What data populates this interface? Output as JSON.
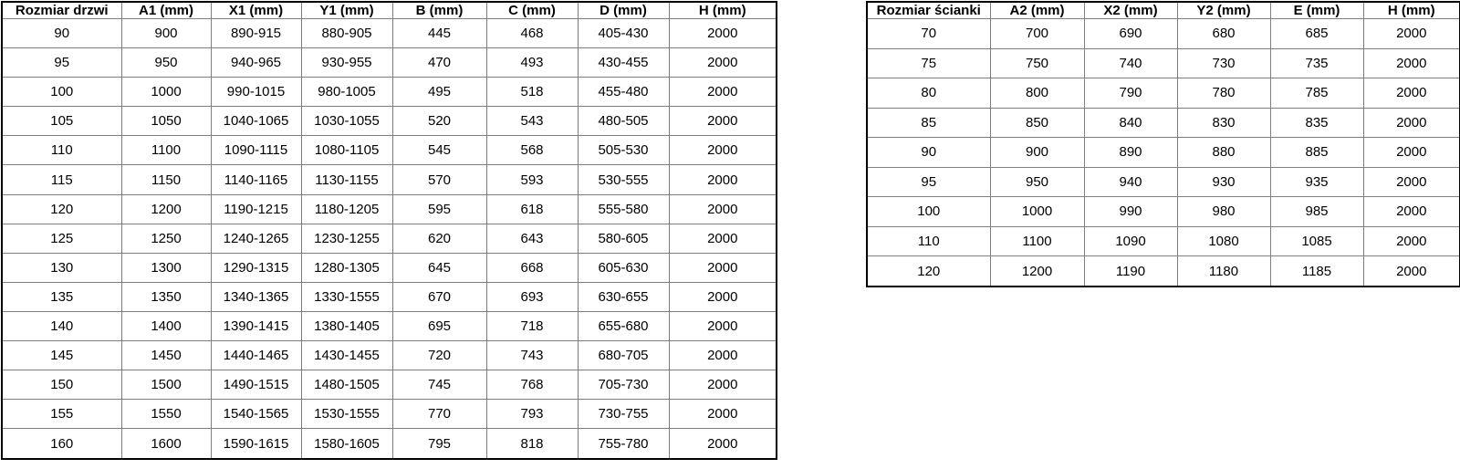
{
  "page": {
    "background": "#ffffff"
  },
  "colors": {
    "outer_border": "#000000",
    "grid_border": "#808080",
    "text": "#000000"
  },
  "tables": [
    {
      "name": "door-size-table",
      "headers": [
        "Rozmiar drzwi",
        "A1 (mm)",
        "X1 (mm)",
        "Y1 (mm)",
        "B (mm)",
        "C (mm)",
        "D (mm)",
        "H (mm)"
      ],
      "rows": [
        [
          "90",
          "900",
          "890-915",
          "880-905",
          "445",
          "468",
          "405-430",
          "2000"
        ],
        [
          "95",
          "950",
          "940-965",
          "930-955",
          "470",
          "493",
          "430-455",
          "2000"
        ],
        [
          "100",
          "1000",
          "990-1015",
          "980-1005",
          "495",
          "518",
          "455-480",
          "2000"
        ],
        [
          "105",
          "1050",
          "1040-1065",
          "1030-1055",
          "520",
          "543",
          "480-505",
          "2000"
        ],
        [
          "110",
          "1100",
          "1090-1115",
          "1080-1105",
          "545",
          "568",
          "505-530",
          "2000"
        ],
        [
          "115",
          "1150",
          "1140-1165",
          "1130-1155",
          "570",
          "593",
          "530-555",
          "2000"
        ],
        [
          "120",
          "1200",
          "1190-1215",
          "1180-1205",
          "595",
          "618",
          "555-580",
          "2000"
        ],
        [
          "125",
          "1250",
          "1240-1265",
          "1230-1255",
          "620",
          "643",
          "580-605",
          "2000"
        ],
        [
          "130",
          "1300",
          "1290-1315",
          "1280-1305",
          "645",
          "668",
          "605-630",
          "2000"
        ],
        [
          "135",
          "1350",
          "1340-1365",
          "1330-1555",
          "670",
          "693",
          "630-655",
          "2000"
        ],
        [
          "140",
          "1400",
          "1390-1415",
          "1380-1405",
          "695",
          "718",
          "655-680",
          "2000"
        ],
        [
          "145",
          "1450",
          "1440-1465",
          "1430-1455",
          "720",
          "743",
          "680-705",
          "2000"
        ],
        [
          "150",
          "1500",
          "1490-1515",
          "1480-1505",
          "745",
          "768",
          "705-730",
          "2000"
        ],
        [
          "155",
          "1550",
          "1540-1565",
          "1530-1555",
          "770",
          "793",
          "730-755",
          "2000"
        ],
        [
          "160",
          "1600",
          "1590-1615",
          "1580-1605",
          "795",
          "818",
          "755-780",
          "2000"
        ]
      ]
    },
    {
      "name": "wall-size-table",
      "headers": [
        "Rozmiar ścianki",
        "A2 (mm)",
        "X2 (mm)",
        "Y2 (mm)",
        "E (mm)",
        "H (mm)"
      ],
      "rows": [
        [
          "70",
          "700",
          "690",
          "680",
          "685",
          "2000"
        ],
        [
          "75",
          "750",
          "740",
          "730",
          "735",
          "2000"
        ],
        [
          "80",
          "800",
          "790",
          "780",
          "785",
          "2000"
        ],
        [
          "85",
          "850",
          "840",
          "830",
          "835",
          "2000"
        ],
        [
          "90",
          "900",
          "890",
          "880",
          "885",
          "2000"
        ],
        [
          "95",
          "950",
          "940",
          "930",
          "935",
          "2000"
        ],
        [
          "100",
          "1000",
          "990",
          "980",
          "985",
          "2000"
        ],
        [
          "110",
          "1100",
          "1090",
          "1080",
          "1085",
          "2000"
        ],
        [
          "120",
          "1200",
          "1190",
          "1180",
          "1185",
          "2000"
        ]
      ]
    }
  ]
}
